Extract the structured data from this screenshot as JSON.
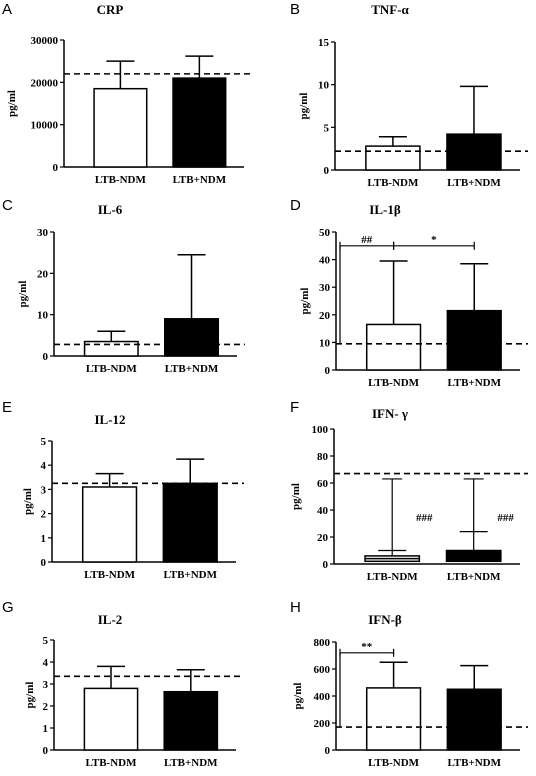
{
  "panels": [
    {
      "letter": "A",
      "title": "CRP",
      "ylabel": "pg/ml",
      "type": "bar",
      "categories": [
        "LTB-NDM",
        "LTB+NDM"
      ],
      "values": [
        18500,
        21000
      ],
      "errors_upper": [
        25000,
        26200
      ],
      "reference_line": 22000,
      "ylim": [
        0,
        30000
      ],
      "yticks": [
        0,
        10000,
        20000,
        30000
      ],
      "yticklabels": [
        "0",
        "10000",
        "20000",
        "30000"
      ],
      "annotations": []
    },
    {
      "letter": "B",
      "title": "TNF-α",
      "ylabel": "pg/ml",
      "type": "bar",
      "categories": [
        "LTB-NDM",
        "LTB+NDM"
      ],
      "values": [
        2.8,
        4.2
      ],
      "errors_upper": [
        3.9,
        9.8
      ],
      "reference_line": 2.2,
      "ylim": [
        0,
        15
      ],
      "yticks": [
        0,
        5,
        10,
        15
      ],
      "yticklabels": [
        "0",
        "5",
        "10",
        "15"
      ],
      "annotations": []
    },
    {
      "letter": "C",
      "title": "IL-6",
      "ylabel": "pg/ml",
      "type": "bar",
      "categories": [
        "LTB-NDM",
        "LTB+NDM"
      ],
      "values": [
        3.5,
        9.0
      ],
      "errors_upper": [
        6.0,
        24.5
      ],
      "reference_line": 2.8,
      "ylim": [
        0,
        30
      ],
      "yticks": [
        0,
        10,
        20,
        30
      ],
      "yticklabels": [
        "0",
        "10",
        "20",
        "30"
      ],
      "annotations": []
    },
    {
      "letter": "D",
      "title": "IL-1β",
      "ylabel": "pg/ml",
      "type": "bar",
      "categories": [
        "LTB-NDM",
        "LTB+NDM"
      ],
      "values": [
        16.5,
        21.5
      ],
      "errors_upper": [
        39.5,
        38.5
      ],
      "reference_line": 9.5,
      "ylim": [
        0,
        50
      ],
      "yticks": [
        0,
        10,
        20,
        30,
        40,
        50
      ],
      "yticklabels": [
        "0",
        "10",
        "20",
        "30",
        "40",
        "50"
      ],
      "annotations": [
        {
          "text": "##",
          "from": "axis",
          "to": 0,
          "y": 45
        },
        {
          "text": "*",
          "from": 0,
          "to": 1,
          "y": 45
        }
      ]
    },
    {
      "letter": "E",
      "title": "IL-12",
      "ylabel": "pg/ml",
      "type": "bar",
      "categories": [
        "LTB-NDM",
        "LTB+NDM"
      ],
      "values": [
        3.1,
        3.25
      ],
      "errors_upper": [
        3.65,
        4.25
      ],
      "reference_line": 3.25,
      "ylim": [
        0,
        5
      ],
      "yticks": [
        0,
        1,
        2,
        3,
        4,
        5
      ],
      "yticklabels": [
        "0",
        "1",
        "2",
        "3",
        "4",
        "5"
      ],
      "annotations": []
    },
    {
      "letter": "F",
      "title": "IFN- γ",
      "ylabel": "pg/ml",
      "type": "boxplot",
      "categories": [
        "LTB-NDM",
        "LTB+NDM"
      ],
      "boxes": [
        {
          "min": 0,
          "q1": 2,
          "median": 4,
          "q3": 6,
          "max": 63,
          "whisker_mid": 10
        },
        {
          "min": 0,
          "q1": 2,
          "median": 6,
          "q3": 10,
          "max": 63,
          "whisker_mid": 24
        }
      ],
      "reference_line": 67,
      "ylim": [
        0,
        100
      ],
      "yticks": [
        0,
        20,
        40,
        60,
        80,
        100
      ],
      "yticklabels": [
        "0",
        "20",
        "40",
        "60",
        "80",
        "100"
      ],
      "annotations": [
        {
          "text": "###",
          "target": 0,
          "y": 32
        },
        {
          "text": "###",
          "target": 1,
          "y": 32
        }
      ]
    },
    {
      "letter": "G",
      "title": "IL-2",
      "ylabel": "pg/ml",
      "type": "bar",
      "categories": [
        "LTB-NDM",
        "LTB+NDM"
      ],
      "values": [
        2.8,
        2.65
      ],
      "errors_upper": [
        3.8,
        3.65
      ],
      "reference_line": 3.35,
      "ylim": [
        0,
        5
      ],
      "yticks": [
        0,
        1,
        2,
        3,
        4,
        5
      ],
      "yticklabels": [
        "0",
        "1",
        "2",
        "3",
        "4",
        "5"
      ],
      "annotations": []
    },
    {
      "letter": "H",
      "title": "IFN-β",
      "ylabel": "pg/ml",
      "type": "bar",
      "categories": [
        "LTB-NDM",
        "LTB+NDM"
      ],
      "values": [
        460,
        450
      ],
      "errors_upper": [
        650,
        625
      ],
      "reference_line": 170,
      "ylim": [
        0,
        800
      ],
      "yticks": [
        0,
        200,
        400,
        600,
        800
      ],
      "yticklabels": [
        "0",
        "200",
        "400",
        "600",
        "800"
      ],
      "annotations": [
        {
          "text": "**",
          "from": "axis",
          "to": 0,
          "y": 720
        }
      ]
    }
  ],
  "series_colors": [
    "#ffffff",
    "#000000"
  ]
}
